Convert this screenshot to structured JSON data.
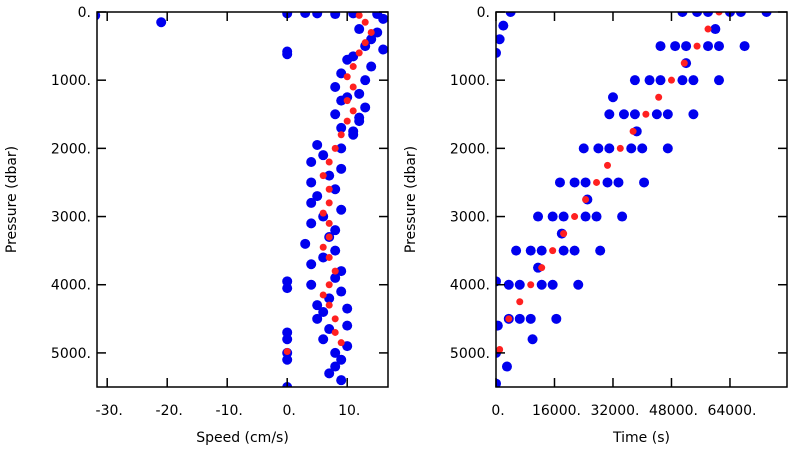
{
  "chart_data": [
    {
      "type": "scatter",
      "xlabel": "Speed (cm/s)",
      "ylabel": "Pressure (dbar)",
      "xlim": [
        -31.7,
        16.8
      ],
      "ylim": [
        0,
        5500
      ],
      "y_inverted": true,
      "xticks": [
        {
          "value": -30,
          "label": "-30."
        },
        {
          "value": -20,
          "label": "-20."
        },
        {
          "value": -10,
          "label": "-10."
        },
        {
          "value": 0,
          "label": "0."
        },
        {
          "value": 10,
          "label": "10."
        }
      ],
      "yticks": [
        {
          "value": 0,
          "label": "0."
        },
        {
          "value": 1000,
          "label": "1000."
        },
        {
          "value": 2000,
          "label": "2000."
        },
        {
          "value": 3000,
          "label": "3000."
        },
        {
          "value": 4000,
          "label": "4000."
        },
        {
          "value": 5000,
          "label": "5000."
        }
      ],
      "series": [
        {
          "color": "#0000ee",
          "x": [
            8,
            15,
            -32,
            -21,
            16,
            15,
            13,
            16,
            0,
            0,
            10,
            14,
            9,
            13,
            8,
            12,
            9,
            13,
            8,
            12,
            9,
            11,
            5,
            9,
            4,
            9,
            4,
            8,
            4,
            9,
            4,
            8,
            3,
            8,
            4,
            9,
            0,
            0,
            4,
            9,
            5,
            10,
            5,
            10,
            0,
            0,
            6,
            10,
            0,
            0,
            8,
            9,
            0,
            5,
            0,
            3,
            11,
            12,
            14,
            11,
            10,
            12,
            11,
            6,
            7,
            5,
            6,
            7,
            6,
            8,
            7,
            6,
            7,
            8,
            9,
            7
          ],
          "values": [
            30,
            30,
            50,
            150,
            100,
            300,
            500,
            550,
            580,
            620,
            700,
            800,
            900,
            1000,
            1100,
            1200,
            1300,
            1400,
            1500,
            1600,
            1700,
            1800,
            1950,
            2000,
            2200,
            2300,
            2500,
            2600,
            2800,
            2900,
            3100,
            3200,
            3400,
            3500,
            3700,
            3800,
            3950,
            4050,
            4000,
            4100,
            4300,
            4350,
            4500,
            4600,
            4700,
            4800,
            4800,
            4900,
            5000,
            5100,
            5200,
            5400,
            5500,
            20,
            20,
            15,
            20,
            250,
            400,
            650,
            1250,
            1550,
            1750,
            2100,
            2400,
            2700,
            3000,
            3300,
            3600,
            3900,
            4200,
            4400,
            4650,
            5000,
            5100,
            5300
          ]
        },
        {
          "color": "#ff2020",
          "x": [
            12,
            13,
            14,
            13,
            12,
            11,
            10,
            11,
            10,
            11,
            10,
            9,
            8,
            7,
            6,
            7,
            7,
            6,
            7,
            7,
            6,
            7,
            8,
            7,
            6,
            7,
            8,
            8,
            9,
            0
          ],
          "values": [
            50,
            150,
            300,
            450,
            600,
            800,
            950,
            1100,
            1300,
            1450,
            1600,
            1800,
            2000,
            2200,
            2400,
            2600,
            2800,
            2950,
            3100,
            3300,
            3450,
            3600,
            3800,
            4000,
            4150,
            4300,
            4500,
            4700,
            4850,
            4980
          ]
        }
      ]
    },
    {
      "type": "scatter",
      "xlabel": "Time (s)",
      "ylabel": "Pressure (dbar)",
      "xlim": [
        0,
        79600
      ],
      "ylim": [
        0,
        5500
      ],
      "y_inverted": true,
      "xticks": [
        {
          "value": 0,
          "label": "0."
        },
        {
          "value": 16000,
          "label": "16000."
        },
        {
          "value": 32000,
          "label": "32000."
        },
        {
          "value": 48000,
          "label": "48000."
        },
        {
          "value": 64000,
          "label": "64000."
        }
      ],
      "yticks": [
        {
          "value": 0,
          "label": "0."
        },
        {
          "value": 1000,
          "label": "1000."
        },
        {
          "value": 2000,
          "label": "2000."
        },
        {
          "value": 3000,
          "label": "3000."
        },
        {
          "value": 4000,
          "label": "4000."
        },
        {
          "value": 5000,
          "label": "5000."
        }
      ],
      "series": [
        {
          "color": "#0000ee",
          "x": [
            55000,
            58000,
            64000,
            67000,
            74000,
            51000,
            49000,
            52000,
            58000,
            61000,
            68000,
            45000,
            42000,
            45000,
            51000,
            54000,
            61000,
            38000,
            35000,
            38000,
            44000,
            47000,
            54000,
            31000,
            28000,
            31000,
            37000,
            40000,
            47000,
            24000,
            21500,
            24500,
            30500,
            33500,
            40500,
            17500,
            15500,
            18500,
            24500,
            27500,
            34500,
            11500,
            9500,
            12500,
            18500,
            21500,
            28500,
            5500,
            3500,
            6500,
            12500,
            15500,
            22500,
            0,
            500,
            3500,
            6500,
            9500,
            16500,
            0,
            0,
            3000,
            10000,
            0,
            2000,
            4000,
            1000,
            52000,
            38500,
            25000,
            11500,
            60000,
            32000,
            18000
          ],
          "values": [
            0,
            0,
            0,
            0,
            0,
            0,
            500,
            500,
            500,
            500,
            500,
            500,
            1000,
            1000,
            1000,
            1000,
            1000,
            1000,
            1500,
            1500,
            1500,
            1500,
            1500,
            1500,
            2000,
            2000,
            2000,
            2000,
            2000,
            2000,
            2500,
            2500,
            2500,
            2500,
            2500,
            2500,
            3000,
            3000,
            3000,
            3000,
            3000,
            3000,
            3500,
            3500,
            3500,
            3500,
            3500,
            3500,
            4000,
            4000,
            4000,
            4000,
            4000,
            3950,
            4600,
            4500,
            4500,
            4500,
            4500,
            5000,
            5450,
            5200,
            4800,
            600,
            200,
            0,
            400,
            750,
            1750,
            2750,
            3750,
            250,
            1250,
            3250
          ]
        },
        {
          "color": "#ff2020",
          "x": [
            61000,
            58000,
            55000,
            51500,
            48000,
            44500,
            41000,
            37500,
            34000,
            30500,
            27500,
            24500,
            21500,
            18500,
            15500,
            12500,
            9500,
            6500,
            3500,
            1000
          ],
          "values": [
            0,
            250,
            500,
            750,
            1000,
            1250,
            1500,
            1750,
            2000,
            2250,
            2500,
            2750,
            3000,
            3250,
            3500,
            3750,
            4000,
            4250,
            4500,
            4950
          ]
        }
      ]
    }
  ]
}
